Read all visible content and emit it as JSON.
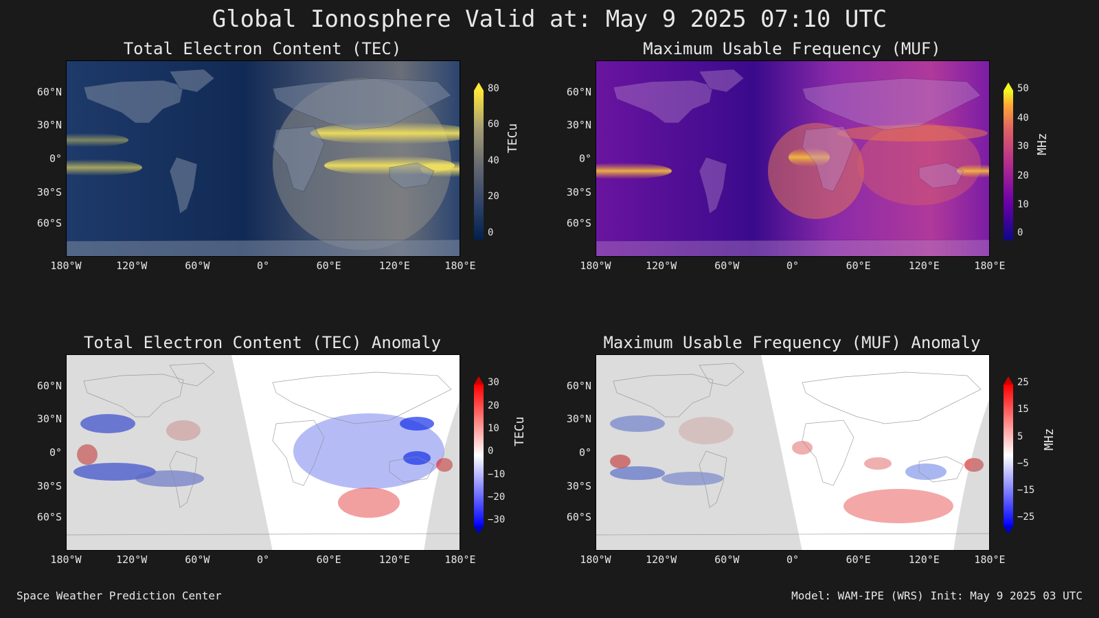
{
  "title": "Global Ionosphere Valid at: May 9 2025 07:10 UTC",
  "footer": {
    "left": "Space Weather Prediction Center",
    "right": "Model: WAM-IPE (WRS) Init: May 9 2025 03 UTC"
  },
  "lat_ticks": [
    "60°N",
    "30°N",
    "0°",
    "30°S",
    "60°S"
  ],
  "lon_ticks": [
    "180°W",
    "120°W",
    "60°W",
    "0°",
    "60°E",
    "120°E",
    "180°E"
  ],
  "panels": [
    {
      "title": "Total Electron Content (TEC)",
      "colorbar": {
        "label": "TECu",
        "ticks": [
          "80",
          "60",
          "40",
          "20",
          "0"
        ],
        "colormap": "cividis"
      }
    },
    {
      "title": "Maximum Usable Frequency (MUF)",
      "colorbar": {
        "label": "MHz",
        "ticks": [
          "50",
          "40",
          "30",
          "20",
          "10",
          "0"
        ],
        "colormap": "plasma"
      }
    },
    {
      "title": "Total Electron Content (TEC) Anomaly",
      "colorbar": {
        "label": "TECu",
        "ticks": [
          "30",
          "20",
          "10",
          "0",
          "−10",
          "−20",
          "−30"
        ],
        "colormap": "bwr"
      }
    },
    {
      "title": "Maximum Usable Frequency (MUF) Anomaly",
      "colorbar": {
        "label": "MHz",
        "ticks": [
          "25",
          "15",
          "5",
          "−5",
          "−15",
          "−25"
        ],
        "colormap": "bwr"
      }
    }
  ]
}
